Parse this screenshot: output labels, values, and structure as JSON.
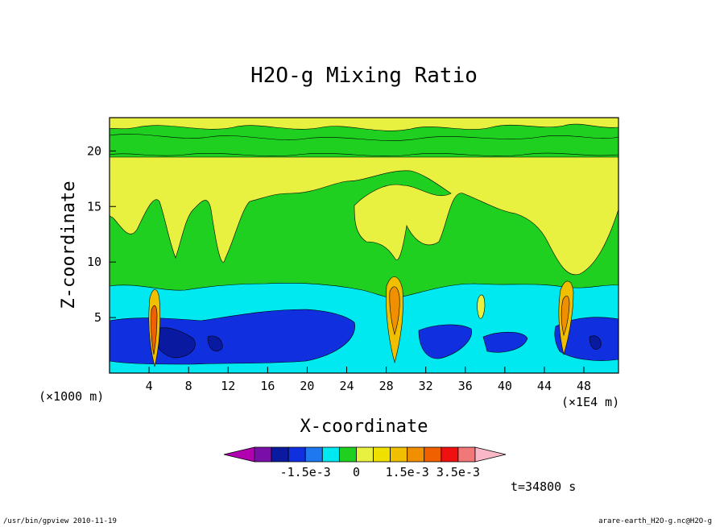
{
  "chart_data": {
    "type": "heatmap",
    "title": "H2O-g Mixing Ratio",
    "xlabel": "X-coordinate",
    "ylabel": "Z-coordinate",
    "x_unit_left": "(×1000 m)",
    "x_unit_right": "(×1E4 m)",
    "x_ticks": [
      "4",
      "8",
      "12",
      "16",
      "20",
      "24",
      "28",
      "32",
      "36",
      "40",
      "44",
      "48"
    ],
    "y_ticks": [
      "5",
      "10",
      "15",
      "20"
    ],
    "xlim": [
      0,
      51.5
    ],
    "ylim": [
      0,
      23
    ],
    "colorbar": {
      "colors": [
        "#b000b0",
        "#7a0fa8",
        "#0a1aa0",
        "#1030e0",
        "#1e78f0",
        "#00e8f0",
        "#20d020",
        "#e8f040",
        "#f0e000",
        "#f0c000",
        "#f09000",
        "#f06000",
        "#f01010",
        "#f07878",
        "#f8b8c8"
      ],
      "tick_labels": [
        "-1.5e-3",
        "0",
        "1.5e-3",
        "3.5e-3"
      ]
    },
    "time_label": "t=34800 s",
    "regions": [
      {
        "level": "positive-small",
        "color": "#e8f040",
        "desc": "upper yellow"
      },
      {
        "level": "zero",
        "color": "#20d020"
      },
      {
        "level": "negative-small",
        "color": "#00e8f0"
      },
      {
        "level": "negative-medium",
        "color": "#1030e0"
      },
      {
        "level": "negative-large",
        "color": "#0a1aa0"
      }
    ]
  },
  "footer": {
    "left": "/usr/bin/gpview   2010-11-19",
    "right": "arare-earth_H2O-g.nc@H2O-g"
  }
}
